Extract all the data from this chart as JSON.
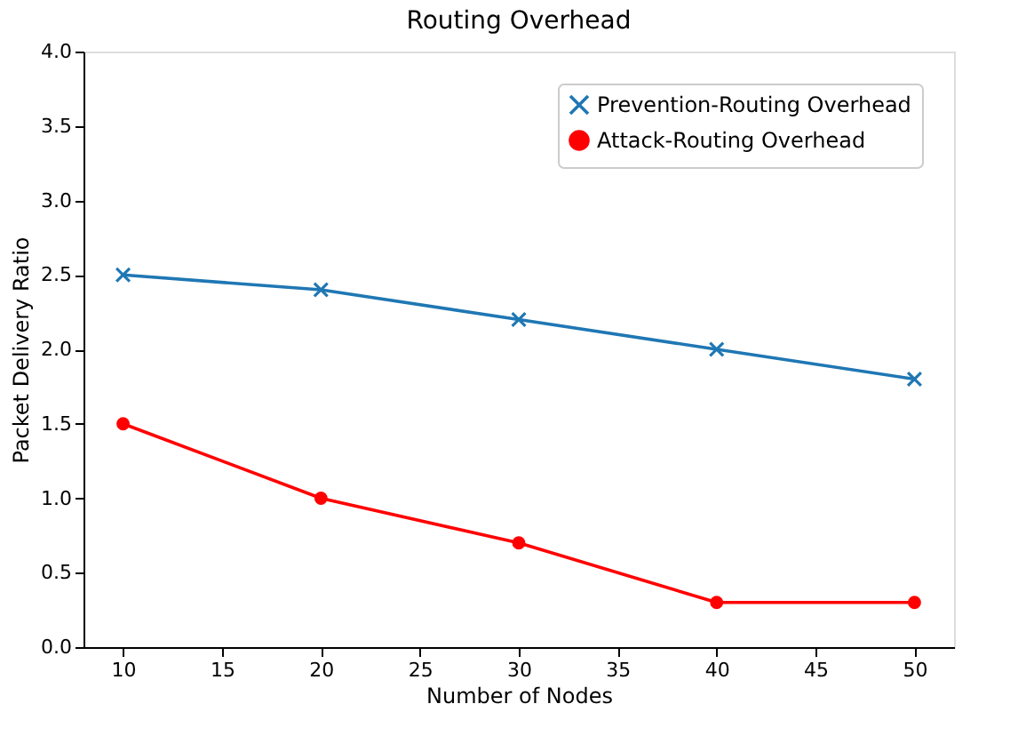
{
  "chart_data": {
    "type": "line",
    "title": "Routing Overhead",
    "xlabel": "Number of Nodes",
    "ylabel": "Packet Delivery Ratio",
    "x": [
      10,
      20,
      30,
      40,
      50
    ],
    "series": [
      {
        "name": "Prevention-Routing Overhead",
        "color": "#1f77b4",
        "marker": "cross",
        "values": [
          2.5,
          2.4,
          2.2,
          2.0,
          1.8
        ]
      },
      {
        "name": "Attack-Routing Overhead",
        "color": "#ff0000",
        "marker": "circle",
        "values": [
          1.5,
          1.0,
          0.7,
          0.3,
          0.3
        ]
      }
    ],
    "xlim": [
      8,
      52
    ],
    "xticks": [
      10,
      15,
      20,
      25,
      30,
      35,
      40,
      45,
      50
    ],
    "ylim": [
      0,
      4
    ],
    "yticks": [
      {
        "value": 0,
        "label": "0.0"
      },
      0.5,
      {
        "value": 1,
        "label": "1.0"
      },
      1.5,
      {
        "value": 2,
        "label": "2.0"
      },
      2.5,
      {
        "value": 3,
        "label": "3.0"
      },
      3.5,
      {
        "value": 4,
        "label": "4.0"
      }
    ],
    "grid": false,
    "legend": "top right",
    "line_style": "solid"
  }
}
